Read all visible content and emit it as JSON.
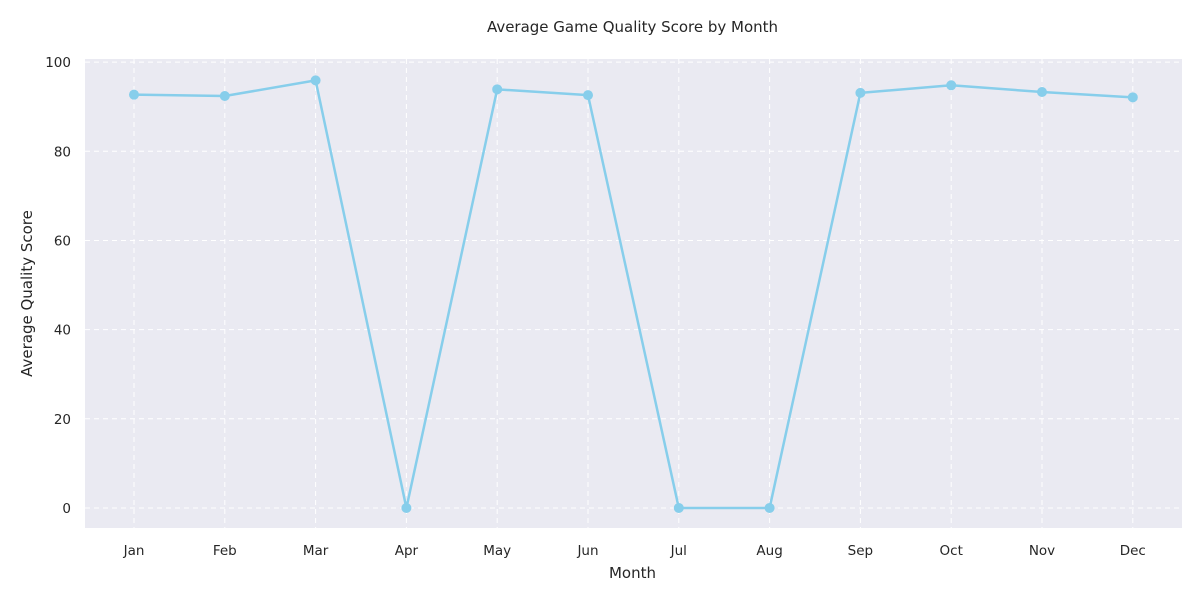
{
  "chart_data": {
    "type": "line",
    "title": "Average Game Quality Score by Month",
    "xlabel": "Month",
    "ylabel": "Average Quality Score",
    "categories": [
      "Jan",
      "Feb",
      "Mar",
      "Apr",
      "May",
      "Jun",
      "Jul",
      "Aug",
      "Sep",
      "Oct",
      "Nov",
      "Dec"
    ],
    "values": [
      92.7,
      92.4,
      95.9,
      0.0,
      93.9,
      92.6,
      0.0,
      0.0,
      93.1,
      94.8,
      93.3,
      92.1
    ],
    "ylim": [
      -4.5,
      100.7
    ],
    "yticks": [
      0,
      20,
      40,
      60,
      80,
      100
    ],
    "grid": true,
    "grid_style": "dashed",
    "colors": {
      "line": "#87ceeb",
      "plot_background": "#eaeaf2",
      "grid": "#ffffff",
      "text": "#262626"
    }
  }
}
